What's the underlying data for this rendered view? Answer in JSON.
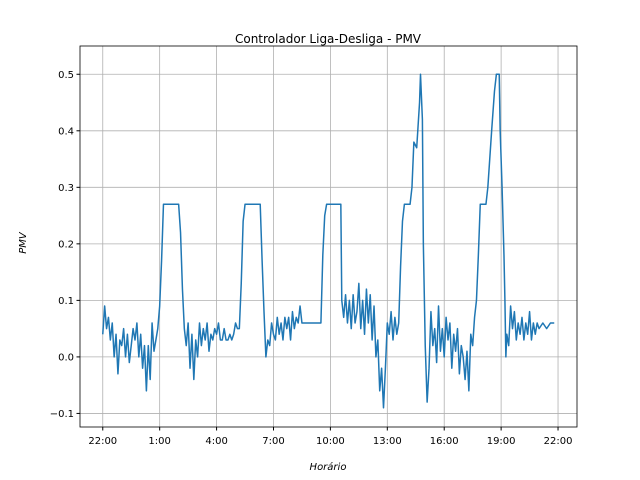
{
  "chart_data": {
    "type": "line",
    "title": "Controlador Liga-Desliga - PMV",
    "xlabel": "Horário",
    "ylabel": "PMV",
    "x": [
      0,
      0.1,
      0.2,
      0.3,
      0.4,
      0.5,
      0.6,
      0.7,
      0.8,
      0.9,
      1.0,
      1.1,
      1.2,
      1.3,
      1.4,
      1.5,
      1.6,
      1.7,
      1.8,
      1.9,
      2.0,
      2.1,
      2.2,
      2.3,
      2.4,
      2.5,
      2.6,
      2.7,
      2.8,
      2.9,
      3.0,
      3.1,
      3.2,
      3.5,
      4.0,
      4.1,
      4.2,
      4.3,
      4.4,
      4.5,
      4.6,
      4.7,
      4.8,
      4.9,
      5.0,
      5.1,
      5.2,
      5.3,
      5.4,
      5.5,
      5.6,
      5.7,
      5.8,
      5.9,
      6.0,
      6.1,
      6.2,
      6.3,
      6.4,
      6.5,
      6.6,
      6.7,
      6.8,
      6.9,
      7.0,
      7.1,
      7.2,
      7.3,
      7.4,
      7.5,
      8.0,
      8.3,
      8.4,
      8.5,
      8.6,
      8.7,
      8.8,
      8.9,
      9.0,
      9.1,
      9.2,
      9.3,
      9.4,
      9.5,
      9.6,
      9.7,
      9.8,
      9.9,
      10.0,
      10.1,
      10.2,
      10.3,
      10.4,
      10.5,
      10.6,
      10.7,
      10.8,
      10.9,
      11.0,
      11.1,
      11.2,
      11.3,
      11.4,
      11.5,
      11.6,
      11.7,
      11.8,
      12.2,
      12.55,
      12.6,
      12.7,
      12.8,
      12.9,
      13.0,
      13.1,
      13.2,
      13.3,
      13.4,
      13.5,
      13.6,
      13.7,
      13.8,
      13.9,
      14.0,
      14.1,
      14.2,
      14.3,
      14.4,
      14.5,
      14.6,
      14.7,
      14.8,
      14.9,
      15.0,
      15.1,
      15.2,
      15.3,
      15.4,
      15.5,
      15.6,
      15.7,
      15.8,
      15.9,
      16.2,
      16.3,
      16.4,
      16.55,
      16.7,
      16.75,
      16.85,
      16.9,
      17.0,
      17.1,
      17.2,
      17.3,
      17.4,
      17.5,
      17.6,
      17.7,
      17.8,
      17.9,
      18.0,
      18.1,
      18.2,
      18.3,
      18.4,
      18.5,
      18.6,
      18.7,
      18.8,
      18.9,
      19.0,
      19.1,
      19.2,
      19.3,
      19.4,
      19.5,
      19.6,
      19.7,
      19.8,
      19.9,
      20.2,
      20.3,
      20.5,
      20.65,
      20.75,
      20.9,
      20.95,
      21.05,
      21.15,
      21.2,
      21.25,
      21.3,
      21.4,
      21.5,
      21.6,
      21.7,
      21.8,
      21.9,
      22.0,
      22.1,
      22.2,
      22.3,
      22.4,
      22.5,
      22.6,
      22.7,
      22.8,
      22.9,
      23.0,
      23.2,
      23.4,
      23.6,
      23.8
    ],
    "series": [
      {
        "color": "#1f77b4",
        "values": [
          0.04,
          0.09,
          0.05,
          0.07,
          0.03,
          0.06,
          0.0,
          0.04,
          -0.03,
          0.03,
          0.02,
          0.05,
          0.0,
          0.04,
          -0.01,
          0.02,
          0.05,
          0.03,
          0.06,
          0.0,
          0.04,
          -0.02,
          0.02,
          -0.06,
          0.02,
          -0.04,
          0.06,
          0.01,
          0.03,
          0.05,
          0.09,
          0.17,
          0.27,
          0.27,
          0.27,
          0.22,
          0.12,
          0.05,
          0.02,
          0.06,
          -0.02,
          0.04,
          -0.04,
          0.03,
          0.0,
          0.06,
          0.02,
          0.05,
          0.03,
          0.06,
          0.01,
          0.04,
          0.03,
          0.05,
          0.04,
          0.06,
          0.03,
          0.03,
          0.05,
          0.03,
          0.03,
          0.04,
          0.03,
          0.04,
          0.06,
          0.05,
          0.05,
          0.13,
          0.24,
          0.27,
          0.27,
          0.27,
          0.17,
          0.08,
          0.0,
          0.03,
          0.02,
          0.06,
          0.04,
          0.03,
          0.07,
          0.04,
          0.06,
          0.03,
          0.07,
          0.05,
          0.07,
          0.03,
          0.08,
          0.05,
          0.07,
          0.06,
          0.09,
          0.06,
          0.06,
          0.06,
          0.06,
          0.06,
          0.06,
          0.06,
          0.06,
          0.06,
          0.06,
          0.06,
          0.18,
          0.25,
          0.27,
          0.27,
          0.27,
          0.1,
          0.07,
          0.11,
          0.06,
          0.1,
          0.05,
          0.11,
          0.06,
          0.08,
          0.13,
          0.05,
          0.1,
          0.04,
          0.12,
          0.06,
          0.11,
          0.03,
          0.09,
          0.0,
          0.03,
          -0.06,
          -0.02,
          -0.09,
          -0.02,
          0.06,
          0.04,
          0.08,
          0.03,
          0.07,
          0.04,
          0.06,
          0.16,
          0.24,
          0.27,
          0.27,
          0.3,
          0.38,
          0.37,
          0.45,
          0.5,
          0.42,
          0.2,
          0.02,
          -0.08,
          -0.02,
          0.08,
          0.02,
          0.05,
          -0.01,
          0.09,
          0.01,
          0.05,
          0.0,
          0.07,
          0.03,
          0.06,
          -0.02,
          0.04,
          0.01,
          0.05,
          -0.03,
          0.02,
          0.0,
          -0.04,
          0.01,
          -0.06,
          0.04,
          0.02,
          0.07,
          0.1,
          0.18,
          0.27,
          0.27,
          0.3,
          0.4,
          0.47,
          0.5,
          0.5,
          0.4,
          0.3,
          0.18,
          0.1,
          0.0,
          0.04,
          0.02,
          0.09,
          0.05,
          0.08,
          0.03,
          0.06,
          0.04,
          0.07,
          0.03,
          0.06,
          0.04,
          0.08,
          0.03,
          0.06,
          0.04,
          0.06,
          0.05,
          0.06,
          0.05,
          0.06,
          0.06
        ]
      }
    ],
    "xlim": [
      -1.2,
      25.0
    ],
    "xticks": [
      {
        "value": 0,
        "label": "22:00"
      },
      {
        "value": 3,
        "label": "1:00"
      },
      {
        "value": 6,
        "label": "4:00"
      },
      {
        "value": 9,
        "label": "7:00"
      },
      {
        "value": 12,
        "label": "10:00"
      },
      {
        "value": 15,
        "label": "13:00"
      },
      {
        "value": 18,
        "label": "16:00"
      },
      {
        "value": 21,
        "label": "19:00"
      },
      {
        "value": 24,
        "label": "22:00"
      }
    ],
    "ylim": [
      -0.124,
      0.55
    ],
    "yticks": [
      {
        "value": -0.1,
        "label": "−0.1"
      },
      {
        "value": 0,
        "label": "0.0"
      },
      0.1,
      0.2,
      0.3,
      0.4,
      0.5
    ],
    "grid": true
  }
}
